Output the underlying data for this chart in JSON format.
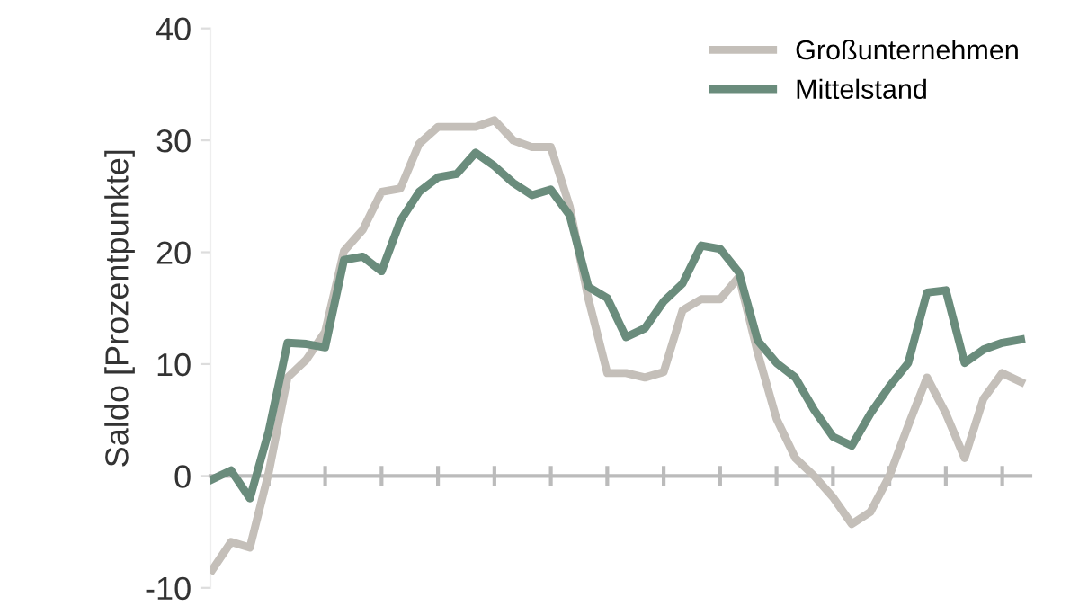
{
  "chart_data": {
    "type": "line",
    "ylabel": "Saldo [Prozentpunkte]",
    "categories": [
      null,
      null,
      null,
      null,
      null,
      null,
      null,
      null,
      null,
      null,
      null,
      null,
      null,
      null,
      null,
      null,
      null,
      null,
      null,
      null,
      null,
      null,
      null,
      null,
      null,
      null,
      null,
      null,
      null,
      null,
      null,
      null,
      null,
      null,
      null,
      null,
      null,
      null,
      null,
      null,
      null,
      null,
      null,
      null
    ],
    "series": [
      {
        "name": "Großunternehmen",
        "color": "#c4bfb9",
        "values": [
          -8.4,
          -5.9,
          -6.4,
          0.3,
          8.8,
          10.4,
          12.9,
          20.1,
          22,
          25.4,
          25.7,
          29.7,
          31.2,
          31.2,
          31.2,
          31.8,
          30,
          29.4,
          29.4,
          24.1,
          15.8,
          9.2,
          9.2,
          8.8,
          9.3,
          14.8,
          15.8,
          15.8,
          17.8,
          11,
          5.1,
          1.6,
          0,
          -1.9,
          -4.3,
          -3.2,
          0,
          4.5,
          8.8,
          5.6,
          1.6,
          6.9,
          9.2,
          8.4
        ]
      },
      {
        "name": "Mittelstand",
        "color": "#6a8c7c",
        "values": [
          -0.3,
          0.5,
          -2,
          4,
          11.9,
          11.8,
          11.5,
          19.3,
          19.6,
          18.3,
          22.8,
          25.4,
          26.7,
          27,
          28.9,
          27.7,
          26.2,
          25.1,
          25.6,
          23.3,
          16.9,
          15.9,
          12.4,
          13.2,
          15.6,
          17.2,
          20.6,
          20.3,
          18.2,
          12.1,
          10.1,
          8.8,
          5.9,
          3.5,
          2.7,
          5.6,
          8,
          10.1,
          16.4,
          16.6,
          10.1,
          11.3,
          11.9,
          12.2
        ]
      }
    ],
    "ylim": [
      -10,
      40
    ],
    "yticks": [
      -10,
      0,
      10,
      20,
      30,
      40
    ],
    "legend": "top right",
    "tick_labels": "y",
    "line_style": "solid",
    "marker": "none"
  }
}
